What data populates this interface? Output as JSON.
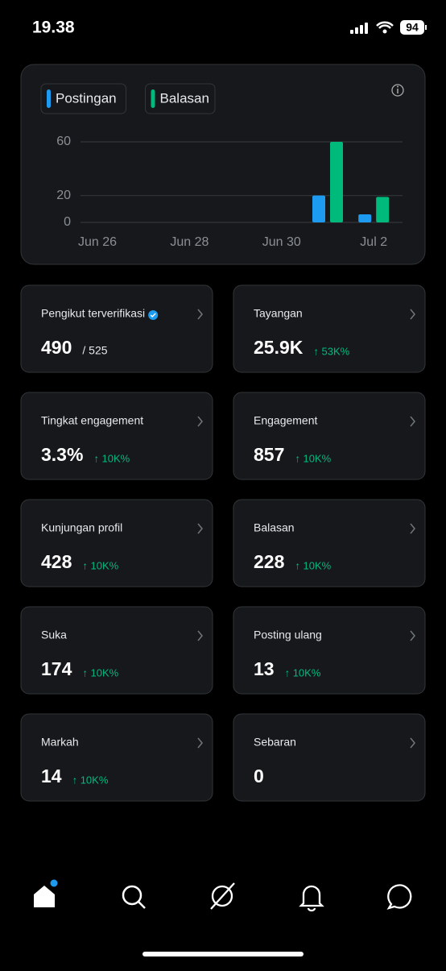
{
  "status_bar": {
    "time": "19.38",
    "battery": "94"
  },
  "chart_data": {
    "type": "bar",
    "categories": [
      "Jun 26",
      null,
      "Jun 28",
      null,
      "Jun 30",
      null,
      "Jul 2"
    ],
    "series": [
      {
        "name": "Postingan",
        "color": "#1d9bf0",
        "values": [
          0,
          0,
          0,
          0,
          0,
          20,
          6
        ]
      },
      {
        "name": "Balasan",
        "color": "#00ba7c",
        "values": [
          0,
          0,
          0,
          0,
          0,
          60,
          19
        ]
      }
    ],
    "ylim": [
      0,
      60
    ],
    "yticks": [
      0,
      20,
      60
    ],
    "grid": true
  },
  "cards": [
    {
      "label": "Pengikut terverifikasi",
      "value": "490",
      "total": "/ 525",
      "verified": true
    },
    {
      "label": "Tayangan",
      "value": "25.9K",
      "change": "↑ 53K%"
    },
    {
      "label": "Tingkat engagement",
      "value": "3.3%",
      "change": "↑ 10K%"
    },
    {
      "label": "Engagement",
      "value": "857",
      "change": "↑ 10K%"
    },
    {
      "label": "Kunjungan profil",
      "value": "428",
      "change": "↑ 10K%"
    },
    {
      "label": "Balasan",
      "value": "228",
      "change": "↑ 10K%"
    },
    {
      "label": "Suka",
      "value": "174",
      "change": "↑ 10K%"
    },
    {
      "label": "Posting ulang",
      "value": "13",
      "change": "↑ 10K%"
    },
    {
      "label": "Markah",
      "value": "14",
      "change": "↑ 10K%"
    },
    {
      "label": "Sebaran",
      "value": "0"
    }
  ]
}
